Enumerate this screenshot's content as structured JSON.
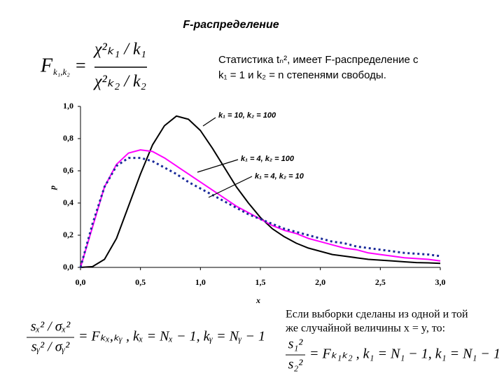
{
  "chart_data": {
    "type": "line",
    "title": "F-распределение",
    "x_label": "x",
    "y_label": "p",
    "x": [
      0,
      0.1,
      0.2,
      0.3,
      0.4,
      0.5,
      0.6,
      0.7,
      0.8,
      0.9,
      1.0,
      1.1,
      1.2,
      1.3,
      1.4,
      1.5,
      1.6,
      1.7,
      1.8,
      1.9,
      2.0,
      2.1,
      2.2,
      2.3,
      2.4,
      2.5,
      2.6,
      2.7,
      2.8,
      2.9,
      3.0
    ],
    "series": [
      {
        "name": "k₁ = 10, k₂ = 100",
        "color": "#000000",
        "style": "solid",
        "values": [
          0,
          0.005,
          0.05,
          0.18,
          0.38,
          0.58,
          0.76,
          0.88,
          0.94,
          0.92,
          0.85,
          0.74,
          0.62,
          0.5,
          0.4,
          0.31,
          0.24,
          0.19,
          0.15,
          0.12,
          0.1,
          0.08,
          0.07,
          0.06,
          0.05,
          0.045,
          0.04,
          0.035,
          0.03,
          0.028,
          0.025
        ]
      },
      {
        "name": "k₁ = 4, k₂ = 100",
        "color": "#ff00ff",
        "style": "solid",
        "values": [
          0,
          0.25,
          0.5,
          0.64,
          0.71,
          0.73,
          0.72,
          0.68,
          0.63,
          0.58,
          0.53,
          0.48,
          0.43,
          0.38,
          0.34,
          0.3,
          0.26,
          0.23,
          0.21,
          0.18,
          0.16,
          0.14,
          0.12,
          0.11,
          0.09,
          0.08,
          0.07,
          0.06,
          0.055,
          0.05,
          0.04
        ]
      },
      {
        "name": "k₁ = 4, k₂ = 10",
        "color": "#1a2a9a",
        "style": "dotted",
        "values": [
          0,
          0.27,
          0.5,
          0.63,
          0.68,
          0.68,
          0.66,
          0.62,
          0.58,
          0.53,
          0.49,
          0.45,
          0.41,
          0.37,
          0.33,
          0.3,
          0.27,
          0.24,
          0.22,
          0.2,
          0.18,
          0.16,
          0.15,
          0.13,
          0.12,
          0.11,
          0.1,
          0.09,
          0.085,
          0.08,
          0.07
        ]
      }
    ],
    "xlim": [
      0,
      3
    ],
    "ylim": [
      0,
      1
    ],
    "xticks": [
      {
        "value": 0,
        "label": "0,0"
      },
      {
        "value": 0.5,
        "label": "0,5"
      },
      {
        "value": 1,
        "label": "1,0"
      },
      {
        "value": 1.5,
        "label": "1,5"
      },
      {
        "value": 2,
        "label": "2,0"
      },
      {
        "value": 2.5,
        "label": "2,5"
      },
      {
        "value": 3,
        "label": "3,0"
      }
    ],
    "yticks": [
      {
        "value": 0,
        "label": "0,0"
      },
      {
        "value": 0.2,
        "label": "0,2"
      },
      {
        "value": 0.4,
        "label": "0,4"
      },
      {
        "value": 0.6,
        "label": "0,6"
      },
      {
        "value": 0.8,
        "label": "0,8"
      },
      {
        "value": 1,
        "label": "1,0"
      }
    ]
  },
  "formula_top": {
    "lhs": "F",
    "lhs_sub": "k₁,k₂",
    "eq": "=",
    "num": "χ²ₖ₁ / k₁",
    "den": "χ²ₖ₂ / k₂"
  },
  "statement": [
    "Статистика tₙ², имеет F-распределение с",
    "k₁ = 1 и k₂ = n степенями свободы."
  ],
  "formula_left": {
    "num": "sₓ² / σₓ²",
    "den": "sᵧ² / σᵧ²",
    "rhs": "= Fₖₓ,ₖᵧ ,   kₓ = Nₓ − 1, kᵧ = Nᵧ − 1"
  },
  "note": [
    "Если выборки сделаны из одной и той",
    "же случайной величины x = y, то:"
  ],
  "formula_right": {
    "num": "s₁²",
    "den": "s₂²",
    "rhs": "= Fₖ₁ₖ₂ ,   k₁ = N₁ − 1, k₁ = N₁ − 1"
  }
}
